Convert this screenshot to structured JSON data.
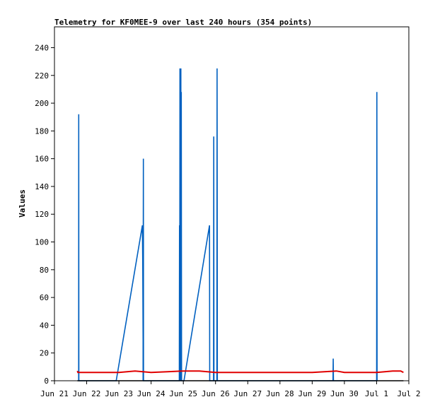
{
  "chart_data": {
    "type": "line",
    "title": "Telemetry for KF0MEE-9 over last 240 hours (354 points)",
    "xlabel": "",
    "ylabel": "Values",
    "x_ticks": [
      "Jun 21",
      "Jun 22",
      "Jun 23",
      "Jun 24",
      "Jun 25",
      "Jun 26",
      "Jun 27",
      "Jun 28",
      "Jun 29",
      "Jun 30",
      "Jul 1",
      "Jul 2"
    ],
    "xlim": [
      "Jun 21",
      "Jul 2"
    ],
    "y_ticks": [
      0,
      20,
      40,
      60,
      80,
      100,
      120,
      140,
      160,
      180,
      200,
      220,
      240
    ],
    "ylim": [
      0,
      255
    ],
    "grid": false,
    "legend": "none",
    "series": [
      {
        "color": "#0060c0",
        "x": [
          "Jun 21 18:00",
          "Jun 21 18:05",
          "Jun 21 18:10",
          "Jun 22 22:00",
          "Jun 23 17:30",
          "Jun 23 17:45",
          "Jun 23 18:00",
          "Jun 23 18:00",
          "Jun 23 18:15",
          "Jun 23 18:20",
          "Jun 23 23:30",
          "Jun 23 23:35",
          "Jun 23 23:40",
          "Jun 24 21:00",
          "Jun 24 21:10",
          "Jun 24 21:20",
          "Jun 24 21:30",
          "Jun 24 21:40",
          "Jun 24 21:50",
          "Jun 24 22:00",
          "Jun 24 22:10",
          "Jun 24 22:20",
          "Jun 24 22:30",
          "Jun 24 22:40",
          "Jun 24 22:50",
          "Jun 24 23:00",
          "Jun 24 23:10",
          "Jun 24 23:20",
          "Jun 25 00:30",
          "Jun 25 19:30",
          "Jun 25 19:40",
          "Jun 25 19:50",
          "Jun 25 20:00",
          "Jun 25 20:10",
          "Jun 25 22:30",
          "Jun 25 22:40",
          "Jun 25 22:50",
          "Jun 26 01:00",
          "Jun 26 01:10",
          "Jun 26 01:20",
          "Jun 29 15:30",
          "Jun 29 15:40",
          "Jun 29 15:50",
          "Jul 1 00:00",
          "Jul 1 00:10",
          "Jul 1 00:20"
        ],
        "values": [
          0,
          192,
          0,
          0,
          112,
          85,
          30,
          0,
          160,
          0,
          0,
          0,
          0,
          0,
          112,
          0,
          225,
          0,
          140,
          197,
          225,
          0,
          208,
          0,
          0,
          0,
          0,
          0,
          0,
          112,
          0,
          0,
          0,
          0,
          0,
          176,
          0,
          0,
          225,
          0,
          0,
          16,
          0,
          0,
          208,
          0
        ]
      },
      {
        "color": "#e00000",
        "x": [
          "Jun 21 17:00",
          "Jun 21 17:30",
          "Jun 22 12:00",
          "Jun 23 00:00",
          "Jun 23 12:00",
          "Jun 24 00:00",
          "Jun 24 12:00",
          "Jun 25 00:00",
          "Jun 25 12:00",
          "Jun 26 00:00",
          "Jun 27 00:00",
          "Jun 28 00:00",
          "Jun 29 00:00",
          "Jun 29 18:00",
          "Jun 30 00:00",
          "Jul 1 00:00",
          "Jul 1 12:00",
          "Jul 1 18:00",
          "Jul 1 20:00"
        ],
        "values": [
          7,
          6,
          6,
          6,
          7,
          6,
          6.5,
          7,
          7,
          6,
          6,
          6,
          6,
          7,
          6,
          6,
          7,
          7,
          6
        ]
      },
      {
        "color": "#000000",
        "x": [
          "Jun 21 17:00",
          "Jul 1 20:00"
        ],
        "values": [
          0,
          0
        ]
      }
    ]
  }
}
